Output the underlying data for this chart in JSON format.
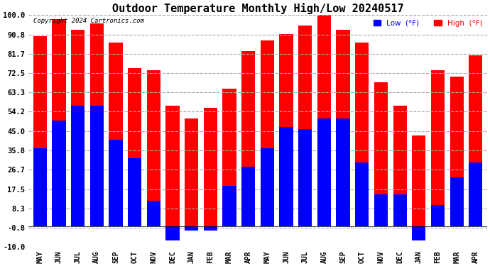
{
  "title": "Outdoor Temperature Monthly High/Low 20240517",
  "copyright": "Copyright 2024 Cartronics.com",
  "legend_low": "Low  (°F)",
  "legend_high": "High  (°F)",
  "months": [
    "MAY",
    "JUN",
    "JUL",
    "AUG",
    "SEP",
    "OCT",
    "NOV",
    "DEC",
    "JAN",
    "FEB",
    "MAR",
    "APR",
    "MAY",
    "JUN",
    "JUL",
    "AUG",
    "SEP",
    "OCT",
    "NOV",
    "DEC",
    "JAN",
    "FEB",
    "MAR",
    "APR"
  ],
  "highs": [
    90,
    98,
    93,
    96,
    87,
    75,
    74,
    57,
    51,
    56,
    65,
    83,
    88,
    91,
    95,
    100,
    93,
    87,
    68,
    57,
    43,
    74,
    71,
    81
  ],
  "lows": [
    37,
    50,
    57,
    57,
    41,
    32,
    12,
    -7,
    -2,
    -2,
    19,
    28,
    37,
    47,
    46,
    51,
    51,
    30,
    15,
    15,
    -7,
    10,
    23,
    30
  ],
  "ylim": [
    -10,
    100
  ],
  "yticks": [
    -10.0,
    -0.8,
    8.3,
    17.5,
    26.7,
    35.8,
    45.0,
    54.2,
    63.3,
    72.5,
    81.7,
    90.8,
    100.0
  ],
  "high_color": "#ff0000",
  "low_color": "#0000ff",
  "bg_color": "#ffffff",
  "grid_color": "#aaaaaa",
  "title_fontsize": 11
}
